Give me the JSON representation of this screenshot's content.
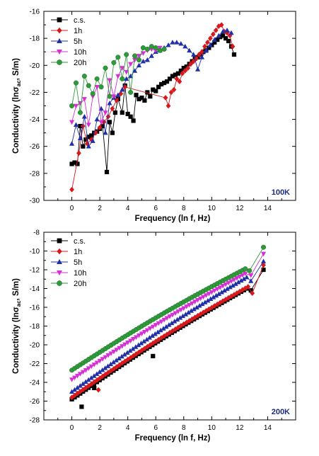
{
  "colors": {
    "c.s.": "#000000",
    "1h": "#d7191c",
    "5h": "#1f2fa8",
    "10h": "#d62fd6",
    "20h": "#2e9a3a",
    "panel_label": "#1b2a7a"
  },
  "chart_data": [
    {
      "type": "scatter",
      "panel_label": "100K",
      "xlabel": "Frequency (ln f, Hz)",
      "ylabel": "Conductivity (lnσ",
      "ylabel_sub": "ac",
      "ylabel_tail": ", S/m)",
      "xlim": [
        -2,
        16
      ],
      "ylim": [
        -30,
        -16
      ],
      "xticks": [
        0,
        2,
        4,
        6,
        8,
        10,
        12,
        14
      ],
      "yticks": [
        -30,
        -28,
        -26,
        -24,
        -22,
        -20,
        -18,
        -16
      ],
      "legend_position": "top-left",
      "series": [
        {
          "name": "c.s.",
          "marker": "square",
          "color": "#000000",
          "x": [
            0.0,
            0.2,
            0.4,
            0.6,
            0.8,
            1.0,
            1.2,
            1.4,
            1.6,
            1.8,
            2.0,
            2.2,
            2.5,
            2.7,
            2.9,
            3.1,
            3.3,
            3.6,
            3.8,
            4.0,
            4.2,
            4.4,
            4.6,
            4.8,
            5.0,
            5.2,
            5.4,
            5.6,
            5.8,
            6.0,
            6.2,
            6.4,
            6.6,
            6.8,
            7.0,
            7.2,
            7.4,
            7.6,
            7.8,
            8.0,
            8.2,
            8.4,
            8.6,
            8.8,
            9.0,
            9.2,
            9.4,
            9.6,
            9.8,
            10.0,
            10.2,
            10.4,
            10.6,
            10.8,
            11.0,
            11.2,
            11.4,
            11.6
          ],
          "y": [
            -27.3,
            -27.2,
            -27.3,
            -24.5,
            -26.0,
            -25.5,
            -25.3,
            -25.2,
            -25.0,
            -24.9,
            -24.7,
            -24.5,
            -27.9,
            -24.2,
            -25.0,
            -23.5,
            -22.5,
            -23.5,
            -21.5,
            -23.6,
            -23.8,
            -24.1,
            -22.2,
            -22.5,
            -22.4,
            -22.6,
            -22.0,
            -22.3,
            -21.8,
            -21.9,
            -21.6,
            -21.4,
            -21.3,
            -21.2,
            -21.0,
            -20.8,
            -20.7,
            -20.6,
            -20.4,
            -20.2,
            -20.1,
            -19.9,
            -19.7,
            -19.5,
            -19.4,
            -19.2,
            -19.0,
            -18.9,
            -18.7,
            -18.5,
            -18.3,
            -18.1,
            -17.9,
            -17.8,
            -18.0,
            -18.2,
            -18.6,
            -19.2
          ]
        },
        {
          "name": "1h",
          "marker": "diamond",
          "color": "#d7191c",
          "x": [
            0.0,
            0.5,
            0.8,
            1.1,
            1.4,
            1.7,
            2.0,
            2.3,
            2.6,
            2.9,
            3.2,
            3.5,
            3.8,
            6.7,
            6.9,
            7.1,
            7.3,
            7.5,
            7.7,
            7.9,
            8.1,
            8.3,
            8.5,
            8.7,
            8.9,
            9.1,
            9.3,
            9.5,
            9.7,
            9.9,
            10.1,
            10.3,
            10.5,
            10.7,
            10.9,
            11.1,
            11.3,
            11.5
          ],
          "y": [
            -29.2,
            -26.5,
            -24.5,
            -25.8,
            -25.5,
            -25.0,
            -24.6,
            -24.2,
            -23.8,
            -23.2,
            -22.6,
            -22.1,
            -21.6,
            -22.4,
            -23.0,
            -22.0,
            -21.8,
            -21.0,
            -21.2,
            -20.6,
            -20.4,
            -20.2,
            -19.9,
            -19.7,
            -19.5,
            -19.2,
            -19.0,
            -18.6,
            -18.3,
            -18.0,
            -17.7,
            -17.4,
            -17.1,
            -17.0,
            -17.5,
            -17.6,
            -17.8,
            -18.6
          ]
        },
        {
          "name": "5h",
          "marker": "triangle",
          "color": "#1f2fa8",
          "x": [
            0.0,
            0.3,
            0.6,
            0.9,
            1.2,
            1.5,
            1.8,
            2.1,
            2.4,
            2.7,
            3.0,
            3.3,
            3.6,
            3.9,
            4.2,
            4.5,
            4.8,
            5.1,
            5.4,
            5.7,
            6.0,
            6.3,
            6.6,
            6.9,
            7.2,
            7.5,
            7.8,
            8.1,
            8.4,
            8.7,
            9.0,
            9.3,
            9.6,
            9.9,
            10.2,
            10.5,
            10.8,
            11.1,
            11.4
          ],
          "y": [
            -25.8,
            -24.4,
            -25.4,
            -23.8,
            -26.0,
            -25.6,
            -24.0,
            -23.2,
            -25.0,
            -22.8,
            -22.4,
            -22.2,
            -21.8,
            -21.0,
            -20.8,
            -20.4,
            -20.0,
            -19.7,
            -19.6,
            -19.3,
            -19.0,
            -18.9,
            -18.7,
            -18.5,
            -18.3,
            -18.3,
            -18.4,
            -18.6,
            -18.9,
            -19.2,
            -20.3,
            -19.4,
            -18.9,
            -18.5,
            -18.1,
            -17.8,
            -17.5,
            -17.4,
            -17.6
          ]
        },
        {
          "name": "10h",
          "marker": "triangle-down",
          "color": "#d62fd6",
          "x": [
            0.0,
            0.3,
            0.6,
            0.9,
            1.2,
            1.5,
            1.8,
            2.1,
            2.4,
            2.7,
            3.0,
            3.3,
            3.6,
            3.9,
            4.2,
            4.5,
            4.8,
            5.1,
            5.4,
            5.7,
            6.0,
            6.3
          ],
          "y": [
            -24.2,
            -23.0,
            -22.8,
            -22.5,
            -24.4,
            -22.3,
            -21.6,
            -24.2,
            -23.5,
            -21.1,
            -22.3,
            -20.8,
            -20.2,
            -20.5,
            -19.9,
            -19.6,
            -19.3,
            -19.1,
            -18.9,
            -18.8,
            -18.9,
            -18.7
          ]
        },
        {
          "name": "20h",
          "marker": "circle",
          "color": "#2e9a3a",
          "x": [
            0.0,
            0.3,
            0.6,
            0.9,
            1.2,
            1.5,
            1.8,
            2.1,
            2.4,
            2.7,
            3.0,
            3.3,
            3.6,
            3.9,
            4.2,
            4.5,
            4.8,
            5.1,
            5.4,
            5.7,
            6.0,
            6.3,
            6.6
          ],
          "y": [
            -23.0,
            -21.3,
            -23.5,
            -20.8,
            -21.5,
            -22.1,
            -21.0,
            -21.6,
            -20.2,
            -22.3,
            -19.8,
            -19.4,
            -21.0,
            -19.2,
            -22.0,
            -19.3,
            -19.6,
            -18.7,
            -18.8,
            -18.6,
            -18.7,
            -18.9,
            -18.8
          ]
        }
      ]
    },
    {
      "type": "scatter",
      "panel_label": "200K",
      "xlabel": "Frequency (ln f, Hz)",
      "ylabel": "Conductivity (lnσ",
      "ylabel_sub": "ac",
      "ylabel_tail": ", S/m)",
      "xlim": [
        -2,
        16
      ],
      "ylim": [
        -28,
        -8
      ],
      "xticks": [
        0,
        2,
        4,
        6,
        8,
        10,
        12,
        14
      ],
      "yticks": [
        -28,
        -26,
        -24,
        -22,
        -20,
        -18,
        -16,
        -14,
        -12,
        -10,
        -8
      ],
      "legend_position": "top-left",
      "series": [
        {
          "name": "c.s.",
          "marker": "square",
          "color": "#000000",
          "line": {
            "x_start": 0.0,
            "y_start": -25.8,
            "x_end": 12.5,
            "y_end": -14.0,
            "step": 0.2,
            "sag": 0.35,
            "after": [
              [
                12.8,
                -14.2
              ],
              [
                13.7,
                -12.0
              ]
            ],
            "outliers": [
              [
                0.7,
                -26.6
              ],
              [
                1.6,
                -24.6
              ],
              [
                5.8,
                -21.2
              ]
            ]
          }
        },
        {
          "name": "1h",
          "marker": "diamond",
          "color": "#d7191c",
          "line": {
            "x_start": 0.0,
            "y_start": -25.6,
            "x_end": 12.6,
            "y_end": -13.8,
            "step": 0.2,
            "sag": 0.35,
            "after": [
              [
                12.9,
                -14.5
              ],
              [
                13.7,
                -11.5
              ]
            ],
            "outliers": [
              [
                1.9,
                -24.8
              ]
            ]
          }
        },
        {
          "name": "5h",
          "marker": "triangle",
          "color": "#1f2fa8",
          "line": {
            "x_start": 0.0,
            "y_start": -25.0,
            "x_end": 12.5,
            "y_end": -12.8,
            "step": 0.2,
            "sag": 0.35,
            "after": [
              [
                12.8,
                -13.2
              ],
              [
                13.7,
                -11.1
              ]
            ],
            "outliers": []
          }
        },
        {
          "name": "10h",
          "marker": "triangle-down",
          "color": "#d62fd6",
          "line": {
            "x_start": 0.0,
            "y_start": -23.7,
            "x_end": 12.4,
            "y_end": -12.4,
            "step": 0.2,
            "sag": 0.35,
            "after": [
              [
                12.8,
                -12.6
              ],
              [
                13.7,
                -10.3
              ]
            ],
            "outliers": []
          }
        },
        {
          "name": "20h",
          "marker": "circle",
          "color": "#2e9a3a",
          "line": {
            "x_start": 0.0,
            "y_start": -22.7,
            "x_end": 12.4,
            "y_end": -11.9,
            "step": 0.2,
            "sag": 0.35,
            "after": [
              [
                12.7,
                -12.1
              ],
              [
                13.7,
                -9.6
              ]
            ],
            "outliers": []
          }
        }
      ]
    }
  ]
}
